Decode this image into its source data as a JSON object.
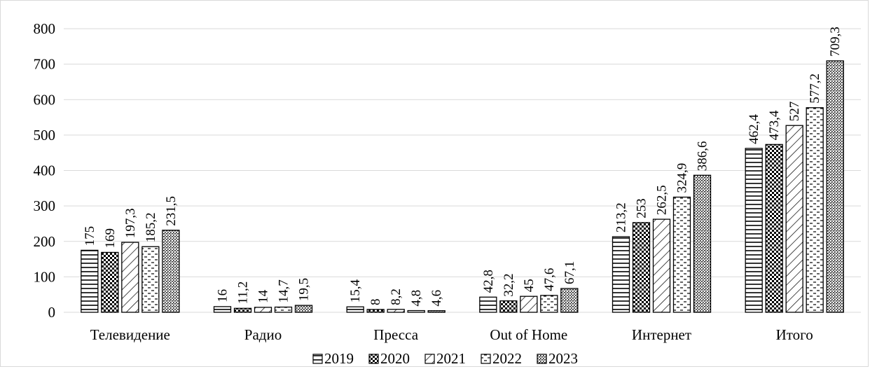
{
  "chart_data": {
    "type": "bar",
    "categories": [
      "Телевидение",
      "Радио",
      "Пресса",
      "Out of Home",
      "Интернет",
      "Итого"
    ],
    "series": [
      {
        "name": "2019",
        "values": [
          175,
          16,
          15.4,
          42.8,
          213.2,
          462.4
        ],
        "labels": [
          "175",
          "16",
          "15,4",
          "42,8",
          "213,2",
          "462,4"
        ],
        "pattern": "horizontal-lines"
      },
      {
        "name": "2020",
        "values": [
          169,
          11.2,
          8,
          32.2,
          253,
          473.4
        ],
        "labels": [
          "169",
          "11,2",
          "8",
          "32,2",
          "253",
          "473,4"
        ],
        "pattern": "checker"
      },
      {
        "name": "2021",
        "values": [
          197.3,
          14,
          8.2,
          45,
          262.5,
          527
        ],
        "labels": [
          "197,3",
          "14",
          "8,2",
          "45",
          "262,5",
          "527"
        ],
        "pattern": "diagonal-lines"
      },
      {
        "name": "2022",
        "values": [
          185.2,
          14.7,
          4.8,
          47.6,
          324.9,
          577.2
        ],
        "labels": [
          "185,2",
          "14,7",
          "4,8",
          "47,6",
          "324,9",
          "577,2"
        ],
        "pattern": "dashed-horizontal"
      },
      {
        "name": "2023",
        "values": [
          231.5,
          19.5,
          4.6,
          67.1,
          386.6,
          709.3
        ],
        "labels": [
          "231,5",
          "19,5",
          "4,6",
          "67,1",
          "386,6",
          "709,3"
        ],
        "pattern": "dense-dots"
      }
    ],
    "yticks": [
      0,
      100,
      200,
      300,
      400,
      500,
      600,
      700,
      800
    ],
    "ylim": [
      0,
      800
    ],
    "grid": true,
    "legend_position": "bottom",
    "bar_fill": "#ffffff",
    "bar_stroke": "#000000",
    "grid_color": "#d9d9d9"
  }
}
